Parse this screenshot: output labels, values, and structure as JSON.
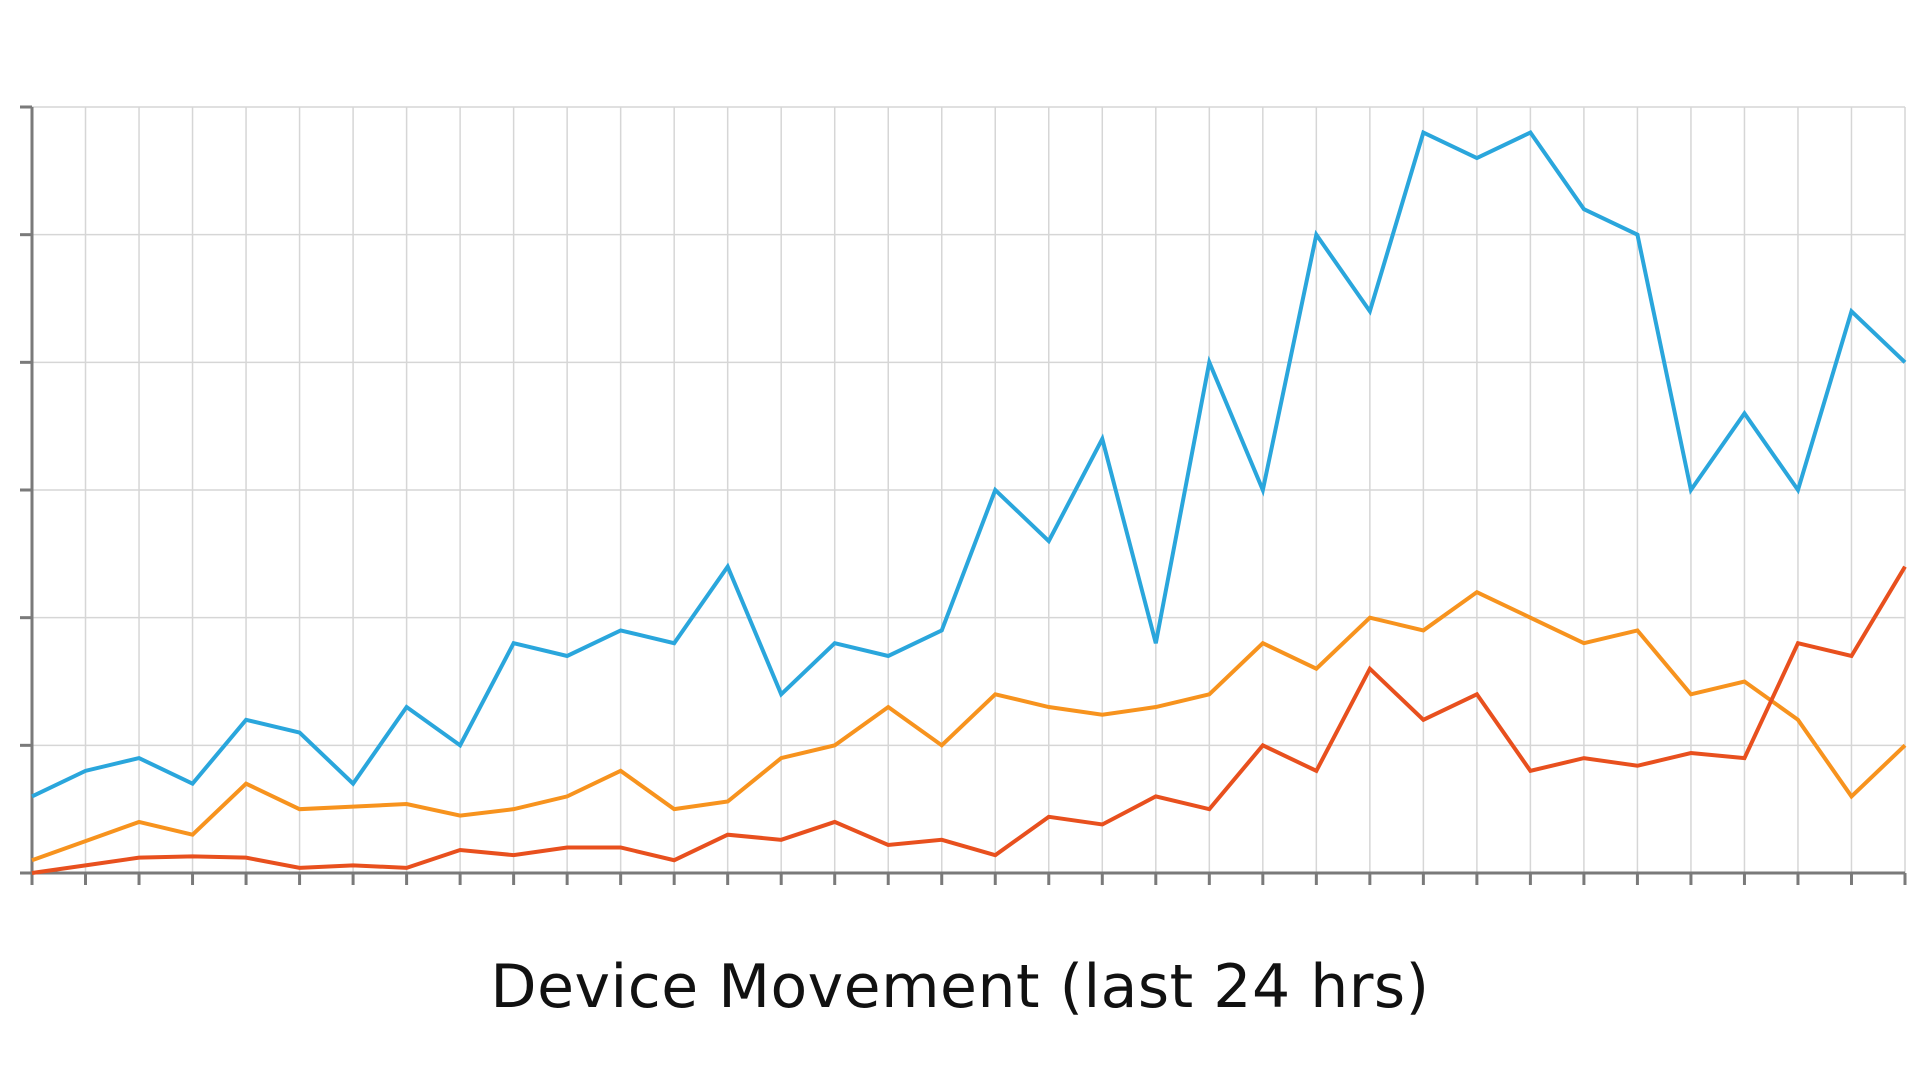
{
  "chart_data": {
    "type": "line",
    "title": "Device Movement (last 24 hrs)",
    "xlabel": "",
    "ylabel": "",
    "x": [
      0,
      1,
      2,
      3,
      4,
      5,
      6,
      7,
      8,
      9,
      10,
      11,
      12,
      13,
      14,
      15,
      16,
      17,
      18,
      19,
      20,
      21,
      22,
      23,
      24,
      25,
      26,
      27,
      28,
      29,
      30,
      31,
      32,
      33,
      34,
      35
    ],
    "ylim": [
      0,
      6
    ],
    "grid": true,
    "legend": "none",
    "series": [
      {
        "color": "#2aa6dc",
        "values": [
          0.6,
          0.8,
          0.9,
          0.7,
          1.2,
          1.1,
          0.7,
          1.3,
          1.0,
          1.8,
          1.7,
          1.9,
          1.8,
          2.4,
          1.4,
          1.8,
          1.7,
          1.9,
          3.0,
          2.6,
          3.4,
          1.8,
          4.0,
          3.0,
          5.0,
          4.4,
          5.8,
          5.6,
          5.8,
          5.2,
          5.0,
          3.0,
          3.6,
          3.0,
          4.4,
          4.0
        ]
      },
      {
        "color": "#f7931e",
        "values": [
          0.1,
          0.25,
          0.4,
          0.3,
          0.7,
          0.5,
          0.52,
          0.54,
          0.45,
          0.5,
          0.6,
          0.8,
          0.5,
          0.56,
          0.9,
          1.0,
          1.3,
          1.0,
          1.4,
          1.3,
          1.24,
          1.3,
          1.4,
          1.8,
          1.6,
          2.0,
          1.9,
          2.2,
          2.0,
          1.8,
          1.9,
          1.4,
          1.5,
          1.2,
          0.6,
          1.0
        ]
      },
      {
        "color": "#e8501e",
        "values": [
          0.0,
          0.06,
          0.12,
          0.13,
          0.12,
          0.04,
          0.06,
          0.04,
          0.18,
          0.14,
          0.2,
          0.2,
          0.1,
          0.3,
          0.26,
          0.4,
          0.22,
          0.26,
          0.14,
          0.44,
          0.38,
          0.6,
          0.5,
          1.0,
          0.8,
          1.6,
          1.2,
          1.4,
          0.8,
          0.9,
          0.84,
          0.94,
          0.9,
          1.8,
          1.7,
          2.4
        ]
      }
    ]
  }
}
